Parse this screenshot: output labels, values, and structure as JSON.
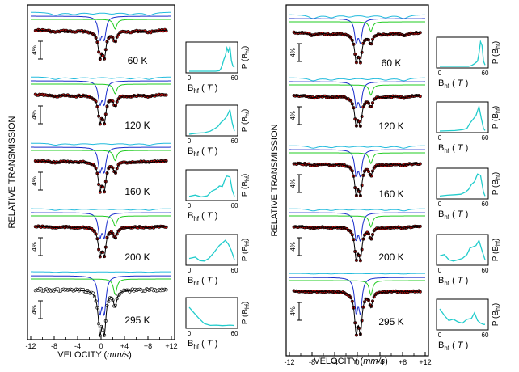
{
  "figure": {
    "ylabel": "RELATIVE TRANSMISSION",
    "xlabel": "VELOCITY",
    "xunit": "mm/s",
    "scale_bar_label": "4%",
    "dist_ylabel_main": "P (B",
    "dist_ylabel_sub": "hf",
    "dist_ylabel_end": ")",
    "dist_xlabel_main": "B",
    "dist_xlabel_sub": "hf",
    "dist_xlabel_unit": "T",
    "colors": {
      "data": "#cc1111",
      "fit": "#000000",
      "sextet": "#22bbdd",
      "doublet_blue": "#1a2ecc",
      "doublet_green": "#22cc22",
      "distribution": "#22cccc"
    }
  },
  "chart_data": [
    {
      "type": "scatter",
      "panel": "left",
      "xlabel": "VELOCITY (mm/s)",
      "ylabel": "RELATIVE TRANSMISSION",
      "xlim": [
        -12,
        12
      ],
      "xticks": [
        -12,
        -8,
        -4,
        0,
        4,
        8,
        12
      ],
      "xtick_labels": [
        "-12",
        "-8",
        "-4",
        "0",
        "+4",
        "+8",
        "+12"
      ],
      "spectra": [
        {
          "temperature": "60 K",
          "sextet_depth": 0.55,
          "doublet_depth": 1.0,
          "open_markers": false
        },
        {
          "temperature": "120 K",
          "sextet_depth": 0.45,
          "doublet_depth": 1.0,
          "open_markers": false
        },
        {
          "temperature": "160 K",
          "sextet_depth": 0.35,
          "doublet_depth": 1.05,
          "open_markers": false
        },
        {
          "temperature": "200 K",
          "sextet_depth": 0.3,
          "doublet_depth": 1.05,
          "open_markers": false
        },
        {
          "temperature": "295 K",
          "sextet_depth": 0.1,
          "doublet_depth": 1.6,
          "open_markers": true
        }
      ],
      "distributions": {
        "xlabel": "Bhf (T)",
        "ylabel": "P (Bhf)",
        "xlim": [
          0,
          60
        ],
        "xtick_labels": [
          "0",
          "60"
        ],
        "series": [
          {
            "temperature": "60 K",
            "B": [
              0,
              35,
              40,
              42,
              44,
              46,
              48,
              50,
              52,
              54,
              56,
              58,
              60
            ],
            "P": [
              0,
              0,
              0.02,
              0.1,
              0.25,
              0.45,
              0.6,
              0.9,
              0.75,
              0.95,
              0.4,
              0.2,
              0.15
            ]
          },
          {
            "temperature": "120 K",
            "B": [
              0,
              10,
              20,
              28,
              34,
              38,
              42,
              46,
              50,
              54,
              57,
              60
            ],
            "P": [
              0,
              0.04,
              0.06,
              0.12,
              0.22,
              0.3,
              0.45,
              0.55,
              0.7,
              0.95,
              0.45,
              0.12
            ]
          },
          {
            "temperature": "160 K",
            "B": [
              0,
              8,
              16,
              24,
              30,
              36,
              40,
              44,
              48,
              50,
              54,
              57,
              60
            ],
            "P": [
              0.1,
              0.15,
              0.08,
              0.12,
              0.3,
              0.38,
              0.5,
              0.48,
              0.8,
              0.88,
              0.85,
              0.35,
              0.1
            ]
          },
          {
            "temperature": "200 K",
            "B": [
              0,
              8,
              14,
              20,
              26,
              32,
              36,
              40,
              44,
              48,
              52,
              56,
              60
            ],
            "P": [
              0.2,
              0.25,
              0.12,
              0.1,
              0.2,
              0.4,
              0.55,
              0.7,
              0.8,
              0.9,
              0.75,
              0.5,
              0.15
            ]
          },
          {
            "temperature": "295 K",
            "B": [
              0,
              6,
              12,
              20,
              28,
              36,
              44,
              50,
              54,
              58,
              60
            ],
            "P": [
              0.75,
              0.55,
              0.35,
              0.12,
              0.05,
              0.06,
              0.04,
              0.05,
              0.06,
              0.05,
              0.04
            ]
          }
        ]
      }
    },
    {
      "type": "scatter",
      "panel": "right",
      "xlabel": "VELOCITY (mm/s)",
      "ylabel": "RELATIVE TRANSMISSION",
      "xlim": [
        -12,
        12
      ],
      "xticks": [
        -12,
        -8,
        -4,
        0,
        4,
        8,
        12
      ],
      "xtick_labels": [
        "-12",
        "-8",
        "-4",
        "0",
        "+4",
        "+8",
        "+12"
      ],
      "spectra": [
        {
          "temperature": "60 K",
          "sextet_depth": 0.7,
          "doublet_depth": 1.0,
          "open_markers": false
        },
        {
          "temperature": "120 K",
          "sextet_depth": 0.55,
          "doublet_depth": 1.05,
          "open_markers": false
        },
        {
          "temperature": "160 K",
          "sextet_depth": 0.45,
          "doublet_depth": 1.1,
          "open_markers": false
        },
        {
          "temperature": "200 K",
          "sextet_depth": 0.4,
          "doublet_depth": 1.15,
          "open_markers": false
        },
        {
          "temperature": "295 K",
          "sextet_depth": 0.12,
          "doublet_depth": 1.5,
          "open_markers": false
        }
      ],
      "distributions": {
        "xlabel": "Bhf (T)",
        "ylabel": "P (Bhf)",
        "xlim": [
          0,
          60
        ],
        "xtick_labels": [
          "0",
          "60"
        ],
        "series": [
          {
            "temperature": "60 K",
            "B": [
              0,
              38,
              42,
              46,
              50,
              52,
              54,
              56,
              58,
              60
            ],
            "P": [
              0,
              0,
              0.03,
              0.1,
              0.2,
              0.5,
              0.95,
              0.8,
              0.2,
              0.05
            ]
          },
          {
            "temperature": "120 K",
            "B": [
              0,
              20,
              30,
              36,
              40,
              44,
              48,
              52,
              55,
              58,
              60
            ],
            "P": [
              0,
              0.02,
              0.05,
              0.1,
              0.3,
              0.45,
              0.6,
              0.95,
              0.5,
              0.1,
              0.02
            ]
          },
          {
            "temperature": "160 K",
            "B": [
              0,
              10,
              20,
              28,
              34,
              38,
              42,
              46,
              50,
              54,
              58,
              60
            ],
            "P": [
              0.05,
              0.08,
              0.1,
              0.12,
              0.2,
              0.3,
              0.5,
              0.6,
              0.9,
              0.85,
              0.2,
              0.05
            ]
          },
          {
            "temperature": "200 K",
            "B": [
              0,
              6,
              12,
              18,
              24,
              30,
              36,
              40,
              44,
              48,
              52,
              56,
              60
            ],
            "P": [
              0.3,
              0.35,
              0.15,
              0.1,
              0.15,
              0.2,
              0.35,
              0.6,
              0.65,
              0.7,
              0.9,
              0.5,
              0.15
            ]
          },
          {
            "temperature": "295 K",
            "B": [
              0,
              6,
              12,
              18,
              24,
              30,
              36,
              42,
              46,
              50,
              54,
              58,
              60
            ],
            "P": [
              0.75,
              0.5,
              0.3,
              0.35,
              0.25,
              0.2,
              0.35,
              0.38,
              0.6,
              0.3,
              0.2,
              0.15,
              0.15
            ]
          }
        ]
      }
    }
  ]
}
